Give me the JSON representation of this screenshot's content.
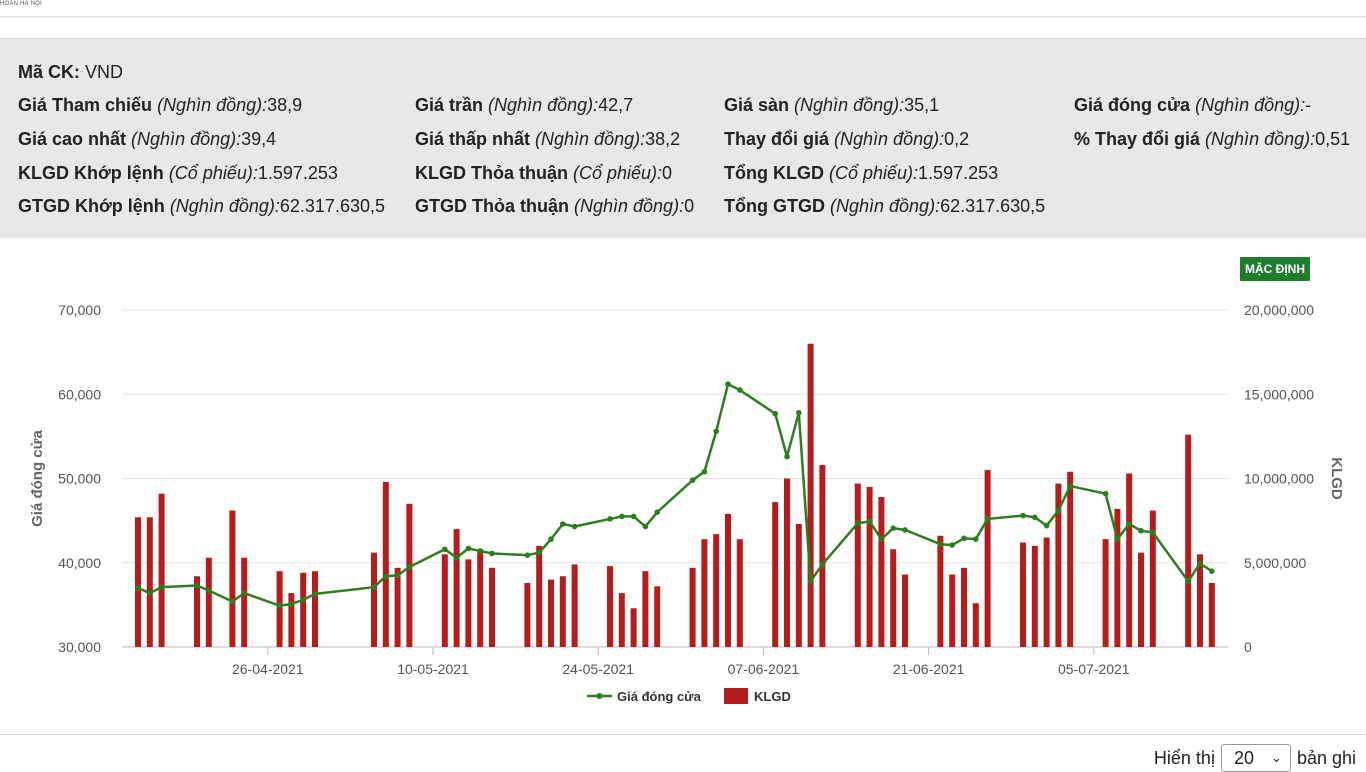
{
  "brand": "HOÁN HÀ NỘI",
  "info": {
    "ma_ck": {
      "label": "Mã CK:",
      "value": "VND"
    },
    "fields": [
      {
        "label": "Giá Tham chiếu",
        "unit": "(Nghìn đồng):",
        "value": "38,9"
      },
      {
        "label": "Giá trần",
        "unit": "(Nghìn đồng):",
        "value": "42,7"
      },
      {
        "label": "Giá sàn",
        "unit": "(Nghìn đồng):",
        "value": "35,1"
      },
      {
        "label": "Giá đóng cửa",
        "unit": "(Nghìn đồng):",
        "value": "-"
      },
      {
        "label": "Giá cao nhất",
        "unit": "(Nghìn đồng):",
        "value": "39,4"
      },
      {
        "label": "Giá thấp nhất",
        "unit": "(Nghìn đồng):",
        "value": "38,2"
      },
      {
        "label": "Thay đổi giá",
        "unit": "(Nghìn đồng):",
        "value": "0,2"
      },
      {
        "label": "% Thay đổi giá",
        "unit": "(Nghìn đồng):",
        "value": "0,51"
      },
      {
        "label": "KLGD Khớp lệnh",
        "unit": "(Cổ phiếu):",
        "value": "1.597.253"
      },
      {
        "label": "KLGD Thỏa thuận",
        "unit": "(Cổ phiếu):",
        "value": "0"
      },
      {
        "label": "Tổng KLGD",
        "unit": "(Cổ phiếu):",
        "value": "1.597.253"
      },
      {
        "label": "GTGD Khớp lệnh",
        "unit": "(Nghìn đồng):",
        "value": "62.317.630,5"
      },
      {
        "label": "GTGD Thỏa thuận",
        "unit": "(Nghìn đồng):",
        "value": "0"
      },
      {
        "label": "Tổng GTGD",
        "unit": "(Nghìn đồng):",
        "value": "62.317.630,5"
      }
    ]
  },
  "default_button": "MẶC ĐỊNH",
  "chart_data": {
    "type": "bar+line",
    "title": "",
    "ylabel": "Giá đóng cửa",
    "y2label": "KLGD",
    "ylim": [
      30000,
      70000
    ],
    "y2lim": [
      0,
      20000000
    ],
    "y_ticks": [
      "30,000",
      "40,000",
      "50,000",
      "60,000",
      "70,000"
    ],
    "y2_ticks": [
      "0",
      "5,000,000",
      "10,000,000",
      "15,000,000",
      "20,000,000"
    ],
    "x_tick_labels": [
      {
        "label": "26-04-2021",
        "index": 11
      },
      {
        "label": "10-05-2021",
        "index": 25
      },
      {
        "label": "24-05-2021",
        "index": 39
      },
      {
        "label": "07-06-2021",
        "index": 53
      },
      {
        "label": "21-06-2021",
        "index": 67
      },
      {
        "label": "05-07-2021",
        "index": 81
      }
    ],
    "day_count": 92,
    "legend": [
      "Giá đóng cửa",
      "KLGD"
    ],
    "bars": [
      {
        "i": 0,
        "v": 7700000
      },
      {
        "i": 1,
        "v": 7700000
      },
      {
        "i": 2,
        "v": 9100000
      },
      {
        "i": 5,
        "v": 4200000
      },
      {
        "i": 6,
        "v": 5300000
      },
      {
        "i": 8,
        "v": 8100000
      },
      {
        "i": 9,
        "v": 5300000
      },
      {
        "i": 12,
        "v": 4500000
      },
      {
        "i": 13,
        "v": 3200000
      },
      {
        "i": 14,
        "v": 4400000
      },
      {
        "i": 15,
        "v": 4500000
      },
      {
        "i": 20,
        "v": 5600000
      },
      {
        "i": 21,
        "v": 9800000
      },
      {
        "i": 22,
        "v": 4700000
      },
      {
        "i": 23,
        "v": 8500000
      },
      {
        "i": 26,
        "v": 5500000
      },
      {
        "i": 27,
        "v": 7000000
      },
      {
        "i": 28,
        "v": 5200000
      },
      {
        "i": 29,
        "v": 5800000
      },
      {
        "i": 30,
        "v": 4700000
      },
      {
        "i": 33,
        "v": 3800000
      },
      {
        "i": 34,
        "v": 6000000
      },
      {
        "i": 35,
        "v": 4000000
      },
      {
        "i": 36,
        "v": 4200000
      },
      {
        "i": 37,
        "v": 4900000
      },
      {
        "i": 40,
        "v": 4800000
      },
      {
        "i": 41,
        "v": 3200000
      },
      {
        "i": 42,
        "v": 2300000
      },
      {
        "i": 43,
        "v": 4500000
      },
      {
        "i": 44,
        "v": 3600000
      },
      {
        "i": 47,
        "v": 4700000
      },
      {
        "i": 48,
        "v": 6400000
      },
      {
        "i": 49,
        "v": 6700000
      },
      {
        "i": 50,
        "v": 7900000
      },
      {
        "i": 51,
        "v": 6400000
      },
      {
        "i": 54,
        "v": 8600000
      },
      {
        "i": 55,
        "v": 10000000
      },
      {
        "i": 56,
        "v": 7300000
      },
      {
        "i": 57,
        "v": 18000000
      },
      {
        "i": 58,
        "v": 10800000
      },
      {
        "i": 61,
        "v": 9700000
      },
      {
        "i": 62,
        "v": 9500000
      },
      {
        "i": 63,
        "v": 8900000
      },
      {
        "i": 64,
        "v": 5800000
      },
      {
        "i": 65,
        "v": 4300000
      },
      {
        "i": 68,
        "v": 6600000
      },
      {
        "i": 69,
        "v": 4300000
      },
      {
        "i": 70,
        "v": 4700000
      },
      {
        "i": 71,
        "v": 2600000
      },
      {
        "i": 72,
        "v": 10500000
      },
      {
        "i": 75,
        "v": 6200000
      },
      {
        "i": 76,
        "v": 6000000
      },
      {
        "i": 77,
        "v": 6500000
      },
      {
        "i": 78,
        "v": 9700000
      },
      {
        "i": 79,
        "v": 10400000
      },
      {
        "i": 82,
        "v": 6400000
      },
      {
        "i": 83,
        "v": 8200000
      },
      {
        "i": 84,
        "v": 10300000
      },
      {
        "i": 85,
        "v": 5600000
      },
      {
        "i": 86,
        "v": 8100000
      },
      {
        "i": 89,
        "v": 12600000
      },
      {
        "i": 90,
        "v": 5500000
      },
      {
        "i": 91,
        "v": 3800000
      }
    ],
    "line": [
      {
        "i": 0,
        "v": 37000
      },
      {
        "i": 1,
        "v": 36400
      },
      {
        "i": 2,
        "v": 37100
      },
      {
        "i": 5,
        "v": 37300
      },
      {
        "i": 6,
        "v": 36700
      },
      {
        "i": 8,
        "v": 35400
      },
      {
        "i": 9,
        "v": 36400
      },
      {
        "i": 12,
        "v": 34900
      },
      {
        "i": 13,
        "v": 35100
      },
      {
        "i": 14,
        "v": 35600
      },
      {
        "i": 15,
        "v": 36300
      },
      {
        "i": 20,
        "v": 37100
      },
      {
        "i": 21,
        "v": 38400
      },
      {
        "i": 22,
        "v": 38500
      },
      {
        "i": 23,
        "v": 39500
      },
      {
        "i": 26,
        "v": 41600
      },
      {
        "i": 27,
        "v": 40600
      },
      {
        "i": 28,
        "v": 41700
      },
      {
        "i": 29,
        "v": 41400
      },
      {
        "i": 30,
        "v": 41100
      },
      {
        "i": 33,
        "v": 40900
      },
      {
        "i": 34,
        "v": 41200
      },
      {
        "i": 35,
        "v": 42800
      },
      {
        "i": 36,
        "v": 44600
      },
      {
        "i": 37,
        "v": 44300
      },
      {
        "i": 40,
        "v": 45200
      },
      {
        "i": 41,
        "v": 45500
      },
      {
        "i": 42,
        "v": 45500
      },
      {
        "i": 43,
        "v": 44300
      },
      {
        "i": 44,
        "v": 46000
      },
      {
        "i": 47,
        "v": 49800
      },
      {
        "i": 48,
        "v": 50800
      },
      {
        "i": 49,
        "v": 55600
      },
      {
        "i": 50,
        "v": 61200
      },
      {
        "i": 51,
        "v": 60500
      },
      {
        "i": 54,
        "v": 57700
      },
      {
        "i": 55,
        "v": 52600
      },
      {
        "i": 56,
        "v": 57800
      },
      {
        "i": 57,
        "v": 37800
      },
      {
        "i": 58,
        "v": 39800
      },
      {
        "i": 61,
        "v": 44700
      },
      {
        "i": 62,
        "v": 44900
      },
      {
        "i": 63,
        "v": 42800
      },
      {
        "i": 64,
        "v": 44100
      },
      {
        "i": 65,
        "v": 43900
      },
      {
        "i": 68,
        "v": 42200
      },
      {
        "i": 69,
        "v": 42100
      },
      {
        "i": 70,
        "v": 42900
      },
      {
        "i": 71,
        "v": 42800
      },
      {
        "i": 72,
        "v": 45200
      },
      {
        "i": 75,
        "v": 45600
      },
      {
        "i": 76,
        "v": 45400
      },
      {
        "i": 77,
        "v": 44400
      },
      {
        "i": 78,
        "v": 46200
      },
      {
        "i": 79,
        "v": 49100
      },
      {
        "i": 82,
        "v": 48200
      },
      {
        "i": 83,
        "v": 42800
      },
      {
        "i": 84,
        "v": 44600
      },
      {
        "i": 85,
        "v": 43800
      },
      {
        "i": 86,
        "v": 43600
      },
      {
        "i": 89,
        "v": 37800
      },
      {
        "i": 90,
        "v": 39900
      },
      {
        "i": 91,
        "v": 39000
      }
    ]
  },
  "pager": {
    "prefix": "Hiển thị",
    "selected": "20",
    "suffix": "bản ghi"
  },
  "colors": {
    "bar": "#b71c1c",
    "line": "#2e7d1f",
    "button": "#1e7d2c"
  }
}
